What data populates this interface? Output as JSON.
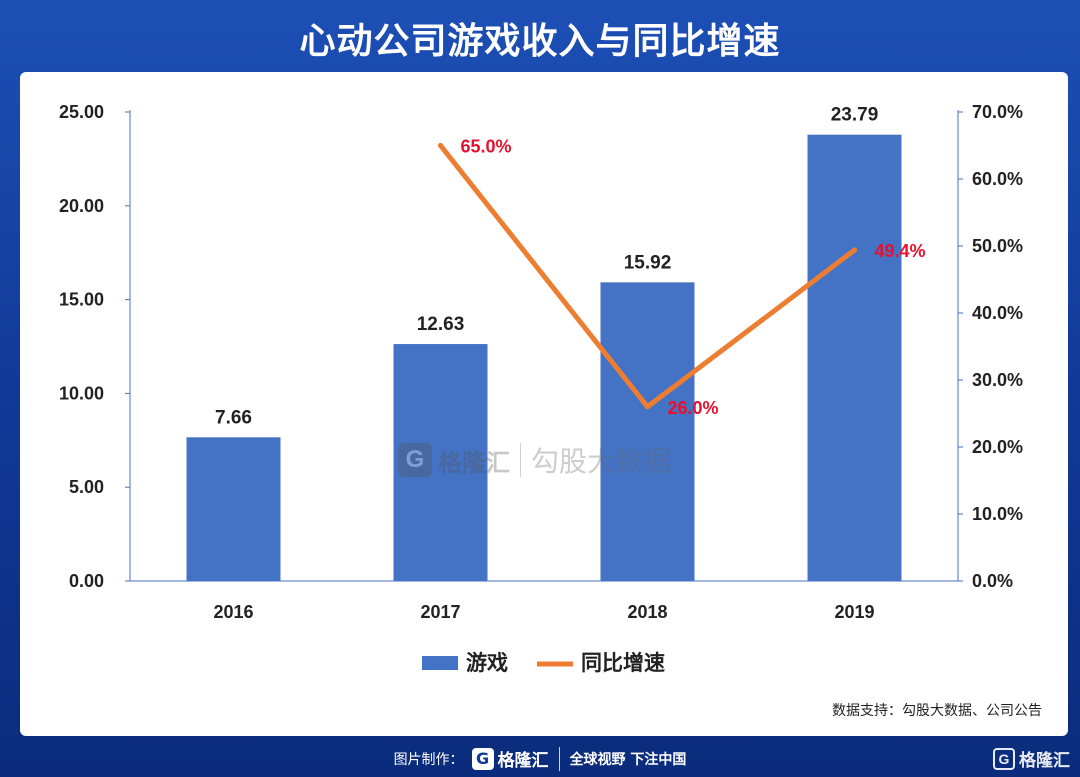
{
  "header": {
    "title": "心动公司游戏收入与同比增速"
  },
  "chart_data": {
    "type": "bar",
    "categories": [
      "2016",
      "2017",
      "2018",
      "2019"
    ],
    "series": [
      {
        "name": "游戏",
        "type": "bar",
        "axis": "left",
        "values": [
          7.66,
          12.63,
          15.92,
          23.79
        ],
        "labels": [
          "7.66",
          "12.63",
          "15.92",
          "23.79"
        ],
        "color": "#4472c4"
      },
      {
        "name": "同比增速",
        "type": "line",
        "axis": "right",
        "values": [
          null,
          65.0,
          26.0,
          49.4
        ],
        "labels": [
          "",
          "65.0%",
          "26.0%",
          "49.4%"
        ],
        "color": "#ed7d31",
        "label_color": "#e8112d"
      }
    ],
    "y_left": {
      "range": [
        0,
        25
      ],
      "ticks": [
        "0.00",
        "5.00",
        "10.00",
        "15.00",
        "20.00",
        "25.00"
      ],
      "tick_values": [
        0,
        5,
        10,
        15,
        20,
        25
      ]
    },
    "y_right": {
      "range": [
        0,
        70
      ],
      "ticks": [
        "0.0%",
        "10.0%",
        "20.0%",
        "30.0%",
        "40.0%",
        "50.0%",
        "60.0%",
        "70.0%"
      ],
      "tick_values": [
        0,
        10,
        20,
        30,
        40,
        50,
        60,
        70
      ]
    },
    "grid": false,
    "legend_position": "bottom",
    "axis_color": "#4472c4"
  },
  "watermark": {
    "logo_glyph": "G",
    "brand": "格隆汇",
    "name": "勾股大数据"
  },
  "source_note": "数据支持：勾股大数据、公司公告",
  "footer": {
    "credit_label": "图片制作：",
    "logo_glyph": "G",
    "brand": "格隆汇",
    "slogan": "全球视野 下注中国"
  },
  "corner_logo": {
    "glyph": "G",
    "brand": "格隆汇"
  }
}
